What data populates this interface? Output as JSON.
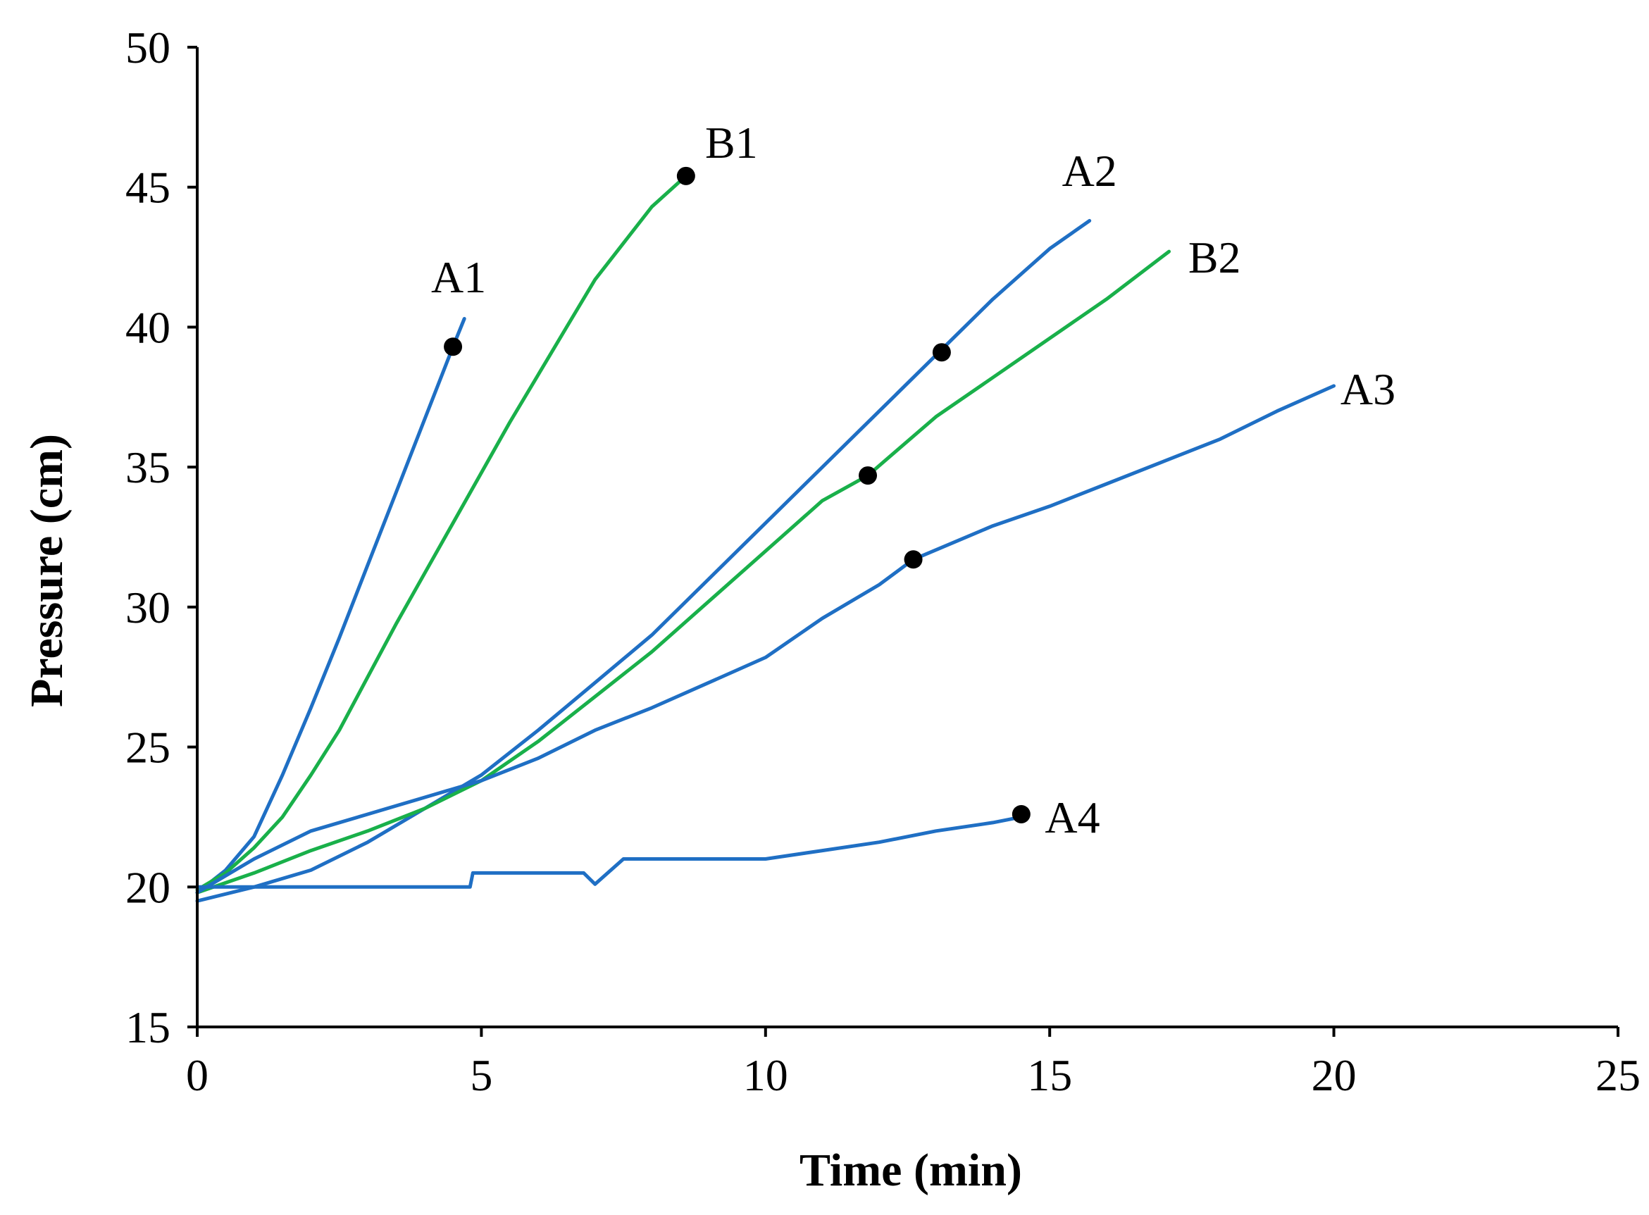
{
  "chart_data": {
    "type": "line",
    "title": "",
    "xlabel": "Time (min)",
    "ylabel": "Pressure (cm)",
    "xlim": [
      0,
      25
    ],
    "ylim": [
      15,
      50
    ],
    "xticks": [
      0,
      5,
      10,
      15,
      20,
      25
    ],
    "yticks": [
      15,
      20,
      25,
      30,
      35,
      40,
      45,
      50
    ],
    "grid": false,
    "legend": "none",
    "colors": {
      "A": "#1f6fc4",
      "B": "#19b04a",
      "marker": "#000000"
    },
    "series": [
      {
        "name": "A1",
        "color": "#1f6fc4",
        "x": [
          0,
          0.5,
          1.0,
          1.5,
          2.0,
          2.5,
          3.0,
          3.5,
          4.0,
          4.5,
          4.7
        ],
        "y": [
          19.8,
          20.6,
          21.8,
          24.0,
          26.4,
          28.9,
          31.5,
          34.1,
          36.7,
          39.3,
          40.3
        ],
        "marker": {
          "x": 4.5,
          "y": 39.3
        }
      },
      {
        "name": "B1",
        "color": "#19b04a",
        "x": [
          0,
          0.5,
          1.0,
          1.5,
          2.0,
          2.5,
          3.0,
          3.5,
          4.0,
          4.5,
          5.0,
          5.5,
          6.0,
          6.5,
          7.0,
          7.5,
          8.0,
          8.6
        ],
        "y": [
          19.9,
          20.5,
          21.4,
          22.5,
          24.0,
          25.6,
          27.5,
          29.4,
          31.2,
          33.0,
          34.8,
          36.6,
          38.3,
          40.0,
          41.7,
          43.0,
          44.3,
          45.4
        ],
        "marker": {
          "x": 8.6,
          "y": 45.4
        }
      },
      {
        "name": "A2",
        "color": "#1f6fc4",
        "x": [
          0,
          1,
          2,
          3,
          4,
          5,
          6,
          7,
          8,
          9,
          10,
          11,
          12,
          13,
          14,
          15,
          15.7
        ],
        "y": [
          19.5,
          20.0,
          20.6,
          21.6,
          22.8,
          24.0,
          25.6,
          27.3,
          29.0,
          31.0,
          33.0,
          35.0,
          37.0,
          39.0,
          41.0,
          42.8,
          43.8
        ],
        "marker": {
          "x": 13.1,
          "y": 39.1
        }
      },
      {
        "name": "B2",
        "color": "#19b04a",
        "x": [
          0,
          1,
          2,
          3,
          4,
          5,
          6,
          7,
          8,
          9,
          10,
          11,
          11.8,
          13,
          14,
          15,
          16,
          17.1
        ],
        "y": [
          19.8,
          20.5,
          21.3,
          22.0,
          22.8,
          23.8,
          25.2,
          26.8,
          28.4,
          30.2,
          32.0,
          33.8,
          34.7,
          36.8,
          38.2,
          39.6,
          41.0,
          42.7
        ],
        "marker": {
          "x": 11.8,
          "y": 34.7
        }
      },
      {
        "name": "A3",
        "color": "#1f6fc4",
        "x": [
          0,
          1,
          2,
          3,
          4,
          5,
          6,
          7,
          8,
          9,
          10,
          11,
          12,
          12.6,
          14,
          15,
          16,
          17,
          18,
          19,
          20
        ],
        "y": [
          19.8,
          21.0,
          22.0,
          22.6,
          23.2,
          23.8,
          24.6,
          25.6,
          26.4,
          27.3,
          28.2,
          29.6,
          30.8,
          31.7,
          32.9,
          33.6,
          34.4,
          35.2,
          36.0,
          37.0,
          37.9
        ],
        "marker": {
          "x": 12.6,
          "y": 31.7
        }
      },
      {
        "name": "A4",
        "color": "#1f6fc4",
        "x": [
          0,
          4.8,
          4.85,
          5.5,
          6.8,
          7.0,
          7.5,
          8.0,
          9.0,
          10.0,
          11.0,
          12.0,
          13.0,
          14.0,
          14.5
        ],
        "y": [
          20.0,
          20.0,
          20.5,
          20.5,
          20.5,
          20.1,
          21.0,
          21.0,
          21.0,
          21.0,
          21.3,
          21.6,
          22.0,
          22.3,
          22.5
        ],
        "marker": {
          "x": 14.5,
          "y": 22.6
        }
      }
    ],
    "annotations": [
      {
        "text": "A1",
        "x": 4.6,
        "y": 41.8
      },
      {
        "text": "B1",
        "x": 9.4,
        "y": 46.6
      },
      {
        "text": "A2",
        "x": 15.7,
        "y": 45.6
      },
      {
        "text": "B2",
        "x": 17.9,
        "y": 42.5
      },
      {
        "text": "A3",
        "x": 20.6,
        "y": 37.8
      },
      {
        "text": "A4",
        "x": 15.4,
        "y": 22.5
      }
    ]
  }
}
